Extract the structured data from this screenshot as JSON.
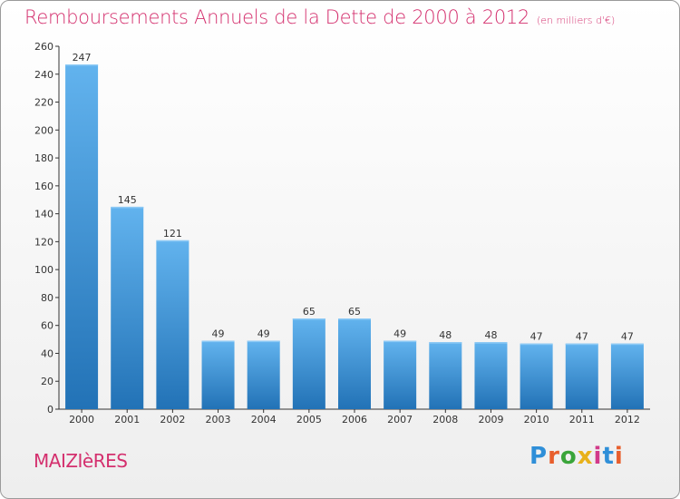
{
  "title": "Remboursements Annuels de la Dette de 2000 à 2012",
  "subtitle": "(en milliers d'€)",
  "commune": "MAIZIèRES",
  "logo": {
    "text": "Proxiti",
    "colors": [
      "#2f8fd8",
      "#e85e2c",
      "#3aa53a",
      "#e8b11a",
      "#d23a8a",
      "#2f8fd8",
      "#e85e2c"
    ]
  },
  "colors": {
    "accent": "#d4306e",
    "bar_top": "#62b3ee",
    "bar_bottom": "#2272b6"
  },
  "chart_data": {
    "type": "bar",
    "title": "Remboursements Annuels de la Dette de 2000 à 2012",
    "xlabel": "",
    "ylabel": "",
    "categories": [
      "2000",
      "2001",
      "2002",
      "2003",
      "2004",
      "2005",
      "2006",
      "2007",
      "2008",
      "2009",
      "2010",
      "2011",
      "2012"
    ],
    "values": [
      247,
      145,
      121,
      49,
      49,
      65,
      65,
      49,
      48,
      48,
      47,
      47,
      47
    ],
    "ylim": [
      0,
      260
    ],
    "yticks": [
      0,
      20,
      40,
      60,
      80,
      100,
      120,
      140,
      160,
      180,
      200,
      220,
      240,
      260
    ],
    "grid": false,
    "legend": "none"
  }
}
